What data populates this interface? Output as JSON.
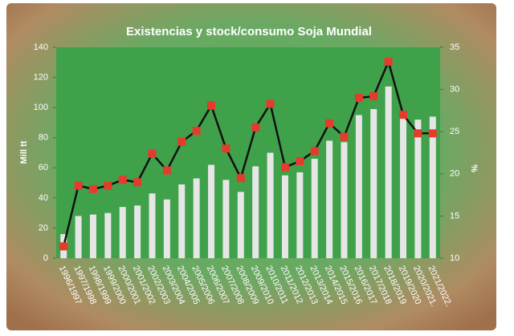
{
  "chart_data": {
    "type": "bar-line",
    "title": "Existencias y stock/consumo Soja Mundial",
    "y_label": "Mill tt",
    "y2_label": "%",
    "categories": [
      "1996/1997",
      "1997/1998",
      "1998/1999",
      "1999/2000",
      "2000/2001",
      "2001/2002",
      "2002/2003",
      "2003/2004",
      "2004/2005",
      "2005/2006",
      "2006/2007",
      "2007/2008",
      "2008/2009",
      "2009/2010",
      "2010/2011",
      "2011/2012",
      "2012/2013",
      "2013/2014",
      "2014/2015",
      "2015/2016",
      "2016/2017",
      "2017/2018",
      "2018/2019",
      "2019/2020",
      "2020/2021.",
      "2021/2022."
    ],
    "series": [
      {
        "type": "bar",
        "color": "#e6e6e6",
        "values": [
          16,
          28,
          29,
          30,
          34,
          35,
          43,
          39,
          49,
          53,
          62,
          52,
          44,
          61,
          70,
          55,
          57,
          66,
          78,
          77,
          95,
          99,
          114,
          95,
          92,
          94
        ]
      },
      {
        "type": "line",
        "axis": "y2",
        "color": "#111111",
        "marker_color": "#e53b2c",
        "values": [
          11.4,
          18.6,
          18.2,
          18.6,
          19.3,
          19.0,
          22.4,
          20.4,
          23.8,
          25.1,
          28.1,
          23.0,
          19.5,
          25.5,
          28.3,
          20.8,
          21.5,
          22.7,
          26.0,
          24.4,
          29.0,
          29.2,
          33.3,
          27.0,
          24.8,
          24.8
        ]
      }
    ],
    "ylim": [
      0,
      140
    ],
    "yticks": [
      0,
      20,
      40,
      60,
      80,
      100,
      120,
      140
    ],
    "y2lim": [
      10,
      35
    ],
    "y2ticks": [
      10,
      15,
      20,
      25,
      30,
      35
    ]
  }
}
